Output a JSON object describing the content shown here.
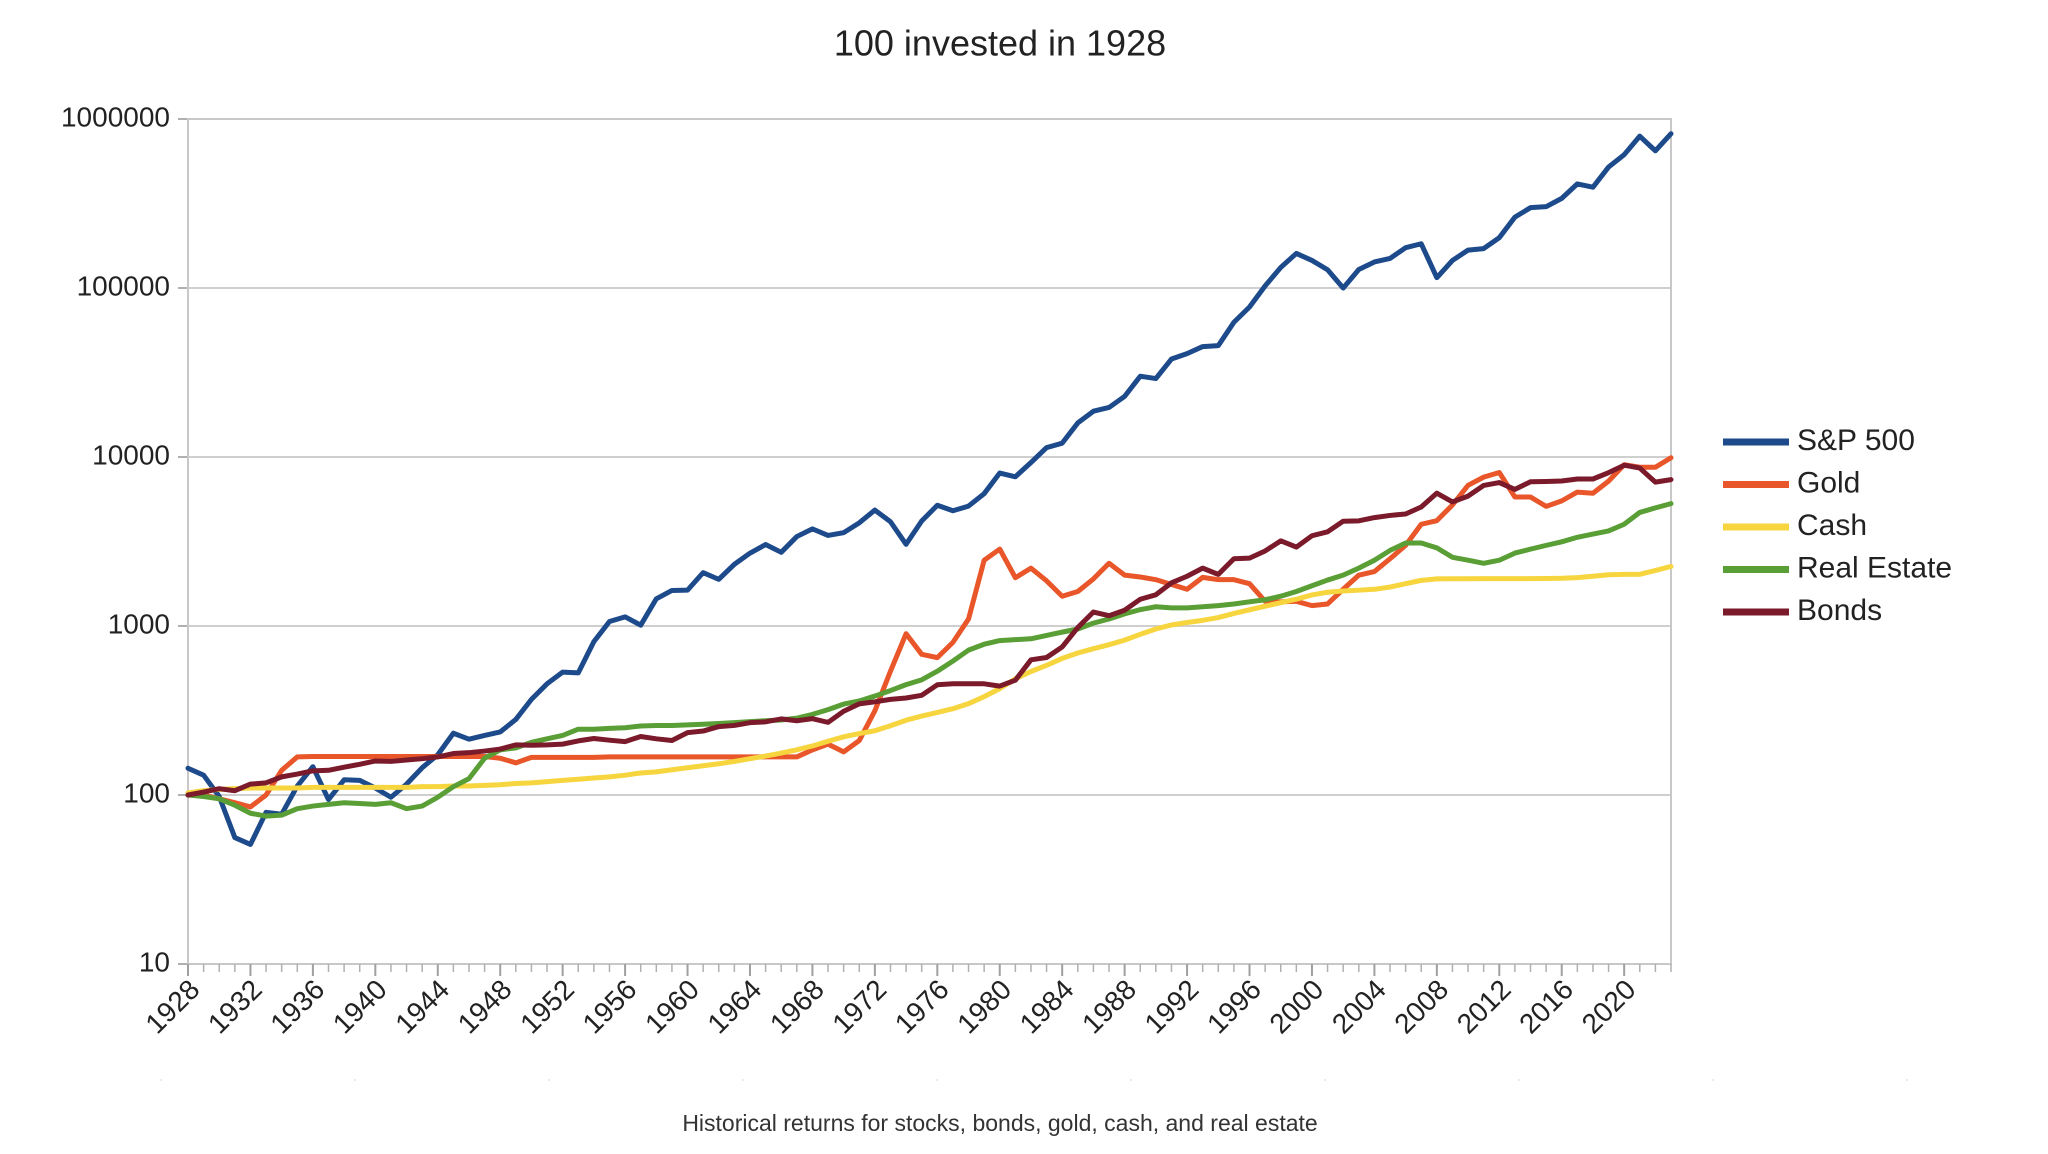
{
  "chart_data": {
    "type": "line",
    "title": "100 invested in 1928",
    "caption": "Historical returns for stocks, bonds, gold, cash, and real estate",
    "x": [
      1928,
      1929,
      1930,
      1931,
      1932,
      1933,
      1934,
      1935,
      1936,
      1937,
      1938,
      1939,
      1940,
      1941,
      1942,
      1943,
      1944,
      1945,
      1946,
      1947,
      1948,
      1949,
      1950,
      1951,
      1952,
      1953,
      1954,
      1955,
      1956,
      1957,
      1958,
      1959,
      1960,
      1961,
      1962,
      1963,
      1964,
      1965,
      1966,
      1967,
      1968,
      1969,
      1970,
      1971,
      1972,
      1973,
      1974,
      1975,
      1976,
      1977,
      1978,
      1979,
      1980,
      1981,
      1982,
      1983,
      1984,
      1985,
      1986,
      1987,
      1988,
      1989,
      1990,
      1991,
      1992,
      1993,
      1994,
      1995,
      1996,
      1997,
      1998,
      1999,
      2000,
      2001,
      2002,
      2003,
      2004,
      2005,
      2006,
      2007,
      2008,
      2009,
      2010,
      2011,
      2012,
      2013,
      2014,
      2015,
      2016,
      2017,
      2018,
      2019,
      2020,
      2021,
      2022,
      2023
    ],
    "xlim": [
      1928,
      2023
    ],
    "xticks": [
      1928,
      1932,
      1936,
      1940,
      1944,
      1948,
      1952,
      1956,
      1960,
      1964,
      1968,
      1972,
      1976,
      1980,
      1984,
      1988,
      1992,
      1996,
      2000,
      2004,
      2008,
      2012,
      2016,
      2020
    ],
    "ylim": [
      10,
      1000000
    ],
    "yticks": [
      10,
      100,
      1000,
      10000,
      100000,
      1000000
    ],
    "log_scale": true,
    "grid": true,
    "legend": "right",
    "series": [
      {
        "name": "S&P 500",
        "color": "#1d4a8a",
        "values": [
          144,
          131,
          98,
          56,
          51,
          79,
          77,
          113,
          147,
          94,
          123,
          122,
          110,
          97,
          116,
          145,
          173,
          232,
          214,
          225,
          236,
          280,
          368,
          455,
          533,
          528,
          808,
          1063,
          1133,
          1011,
          1449,
          1623,
          1630,
          2069,
          1888,
          2318,
          2699,
          3034,
          2729,
          3382,
          3756,
          3436,
          3566,
          4076,
          4849,
          4139,
          3045,
          4181,
          5179,
          4808,
          5122,
          6066,
          8036,
          7640,
          9277,
          11366,
          12075,
          15909,
          18655,
          19631,
          22837,
          30054,
          29125,
          37998,
          40904,
          45025,
          45622,
          62724,
          77169,
          102919,
          132326,
          160167,
          145575,
          128278,
          99927,
          128594,
          142598,
          149600,
          173233,
          182751,
          115150,
          145614,
          167544,
          171079,
          198462,
          262745,
          298703,
          302828,
          339048,
          413074,
          394951,
          519346,
          614828,
          791504,
          648199,
          818582
        ]
      },
      {
        "name": "Gold",
        "color": "#e8562a",
        "values": [
          100,
          100,
          95,
          90,
          85,
          100,
          140,
          168,
          169,
          169,
          169,
          169,
          169,
          169,
          169,
          169,
          169,
          169,
          169,
          169,
          165,
          155,
          167,
          167,
          167,
          167,
          167,
          168,
          168,
          168,
          168,
          168,
          168,
          168,
          168,
          168,
          168,
          168,
          168,
          168,
          185,
          200,
          180,
          210,
          315,
          540,
          900,
          680,
          650,
          800,
          1100,
          2450,
          2850,
          1930,
          2200,
          1850,
          1500,
          1600,
          1900,
          2350,
          2000,
          1950,
          1880,
          1760,
          1650,
          1940,
          1880,
          1880,
          1780,
          1400,
          1390,
          1400,
          1320,
          1350,
          1650,
          2000,
          2100,
          2500,
          3000,
          4000,
          4200,
          5200,
          6800,
          7600,
          8100,
          5800,
          5800,
          5100,
          5500,
          6200,
          6100,
          7200,
          9000,
          8700,
          8700,
          9900
        ]
      },
      {
        "name": "Cash",
        "color": "#f6d53e",
        "values": [
          103,
          106,
          108,
          109,
          110,
          110,
          110,
          110,
          111,
          111,
          111,
          111,
          111,
          111,
          111,
          112,
          112,
          113,
          113,
          114,
          115,
          117,
          118,
          120,
          122,
          124,
          126,
          128,
          131,
          135,
          137,
          141,
          145,
          149,
          153,
          158,
          164,
          170,
          177,
          185,
          195,
          208,
          221,
          231,
          240,
          257,
          277,
          293,
          308,
          324,
          347,
          382,
          426,
          487,
          538,
          585,
          643,
          692,
          734,
          775,
          825,
          893,
          960,
          1014,
          1049,
          1080,
          1122,
          1186,
          1246,
          1310,
          1373,
          1440,
          1527,
          1585,
          1612,
          1629,
          1649,
          1700,
          1780,
          1862,
          1900,
          1903,
          1905,
          1906,
          1907,
          1908,
          1908,
          1909,
          1915,
          1933,
          1970,
          2010,
          2020,
          2021,
          2130,
          2250
        ]
      },
      {
        "name": "Real Estate",
        "color": "#5a9e36",
        "values": [
          100,
          98,
          95,
          87,
          78,
          75,
          76,
          83,
          86,
          88,
          90,
          89,
          88,
          90,
          83,
          86,
          97,
          112,
          125,
          165,
          185,
          190,
          205,
          215,
          225,
          245,
          245,
          248,
          250,
          256,
          258,
          258,
          260,
          262,
          265,
          268,
          272,
          275,
          278,
          285,
          300,
          320,
          345,
          360,
          385,
          415,
          450,
          480,
          540,
          620,
          720,
          780,
          820,
          830,
          840,
          880,
          920,
          960,
          1040,
          1100,
          1180,
          1250,
          1300,
          1280,
          1280,
          1300,
          1320,
          1350,
          1390,
          1430,
          1500,
          1600,
          1730,
          1870,
          2000,
          2200,
          2450,
          2800,
          3100,
          3100,
          2900,
          2550,
          2450,
          2350,
          2450,
          2700,
          2850,
          3000,
          3150,
          3350,
          3500,
          3650,
          4000,
          4700,
          5000,
          5300
        ]
      },
      {
        "name": "Bonds",
        "color": "#7a1a2a",
        "values": [
          100,
          104,
          109,
          106,
          116,
          118,
          128,
          133,
          139,
          140,
          146,
          152,
          159,
          158,
          161,
          164,
          168,
          176,
          178,
          182,
          187,
          198,
          197,
          198,
          200,
          209,
          216,
          211,
          207,
          222,
          215,
          210,
          234,
          239,
          254,
          258,
          268,
          271,
          282,
          275,
          283,
          269,
          313,
          346,
          356,
          368,
          375,
          389,
          449,
          455,
          455,
          455,
          441,
          478,
          631,
          651,
          752,
          979,
          1210,
          1150,
          1240,
          1440,
          1530,
          1800,
          1970,
          2200,
          2020,
          2500,
          2520,
          2780,
          3190,
          2930,
          3420,
          3610,
          4170,
          4190,
          4380,
          4510,
          4600,
          5060,
          6110,
          5420,
          5870,
          6790,
          7060,
          6430,
          7140,
          7160,
          7210,
          7410,
          7410,
          8080,
          8940,
          8600,
          7100,
          7350
        ]
      }
    ]
  }
}
